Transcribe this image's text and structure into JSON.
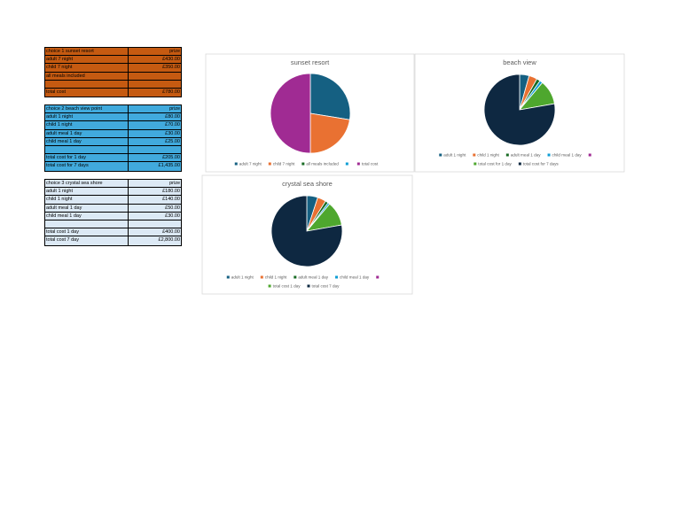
{
  "tables": [
    {
      "fill": "#c55a11",
      "header": [
        "choice 1 sunset resort",
        "prize"
      ],
      "rows": [
        [
          "adult 7 night",
          "£430.00"
        ],
        [
          "child 7 night",
          "£350.00"
        ],
        [
          "all meals included",
          null
        ],
        [
          null,
          null
        ],
        [
          "total cost",
          "£780.00"
        ]
      ]
    },
    {
      "fill": "#41aadd",
      "header": [
        "choice 2 beach view point",
        "prize"
      ],
      "rows": [
        [
          "adult 1 night",
          "£80.00"
        ],
        [
          "child 1 night",
          "£70.00"
        ],
        [
          "adult meal 1 day",
          "£30.00"
        ],
        [
          "child meal 1 day",
          "£25.00"
        ],
        [
          null,
          null
        ],
        [
          "total cost for 1 day",
          "£205.00"
        ],
        [
          "total cost for 7 days",
          "£1,435.00"
        ]
      ]
    },
    {
      "fill": "#dce9f5",
      "header": [
        "choice 3 crystal sea shore",
        "prize"
      ],
      "rows": [
        [
          "adult 1 night",
          "£180.00"
        ],
        [
          "child 1 night",
          "£140.00"
        ],
        [
          "adult meal 1 day",
          "£50.00"
        ],
        [
          "child meal 1 day",
          "£30.00"
        ],
        [
          null,
          null
        ],
        [
          "total cost 1 day",
          "£400.00"
        ],
        [
          "total cost 7 day",
          "£2,800.00"
        ]
      ]
    }
  ],
  "chart_data": [
    {
      "type": "pie",
      "title": "sunset resort",
      "categories": [
        "adult 7 night",
        "child 7 night",
        "all meals included",
        null,
        "total cost"
      ],
      "values": [
        430,
        350,
        null,
        null,
        780
      ],
      "colors": [
        "#156082",
        "#e97132",
        "#196b24",
        "#0f9ed5",
        "#a02b93"
      ]
    },
    {
      "type": "pie",
      "title": "beach view",
      "categories": [
        "adult 1 night",
        "child 1 night",
        "adult meal 1 day",
        "child meal 1 day",
        null,
        "total cost for 1 day",
        "total cost for 7 days"
      ],
      "values": [
        80,
        70,
        30,
        25,
        null,
        205,
        1435
      ],
      "colors": [
        "#156082",
        "#e97132",
        "#196b24",
        "#0f9ed5",
        "#a02b93",
        "#4ea72e",
        "#0e2841"
      ]
    },
    {
      "type": "pie",
      "title": "crystal sea shore",
      "categories": [
        "adult 1 night",
        "child 1 night",
        "adult meal 1 day",
        "child meal 1 day",
        null,
        "total cost 1 day",
        "total cost 7 day"
      ],
      "values": [
        180,
        140,
        50,
        30,
        null,
        400,
        2800
      ],
      "colors": [
        "#156082",
        "#e97132",
        "#196b24",
        "#0f9ed5",
        "#a02b93",
        "#4ea72e",
        "#0e2841"
      ]
    }
  ]
}
